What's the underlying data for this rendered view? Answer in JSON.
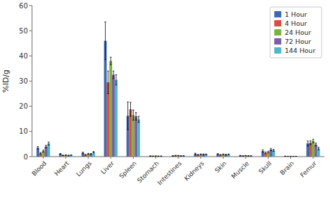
{
  "chart_data": {
    "type": "bar",
    "ylabel": "%ID/g",
    "categories": [
      "Blood",
      "Heart",
      "Lungs",
      "Liver",
      "Spleen",
      "Stomach",
      "Intestines",
      "Kidneys",
      "Skin",
      "Muscle",
      "Skull",
      "Brain",
      "Femur"
    ],
    "series": [
      {
        "name": "1 Hour",
        "color": "#3f68ae",
        "values": [
          3.5,
          1.1,
          1.5,
          46.0,
          16.2,
          0.25,
          0.3,
          1.1,
          1.0,
          0.4,
          2.2,
          0.15,
          5.2
        ],
        "errors": [
          0.5,
          0.15,
          0.3,
          7.5,
          5.5,
          0.08,
          0.08,
          0.25,
          0.2,
          0.1,
          0.5,
          0.05,
          1.0
        ]
      },
      {
        "name": "4 Hour",
        "color": "#d94f3d",
        "values": [
          1.3,
          0.5,
          0.7,
          29.5,
          18.8,
          0.2,
          0.4,
          0.7,
          0.7,
          0.3,
          1.5,
          0.1,
          5.5
        ],
        "errors": [
          0.3,
          0.08,
          0.15,
          4.5,
          2.8,
          0.06,
          0.1,
          0.15,
          0.12,
          0.07,
          0.35,
          0.04,
          0.8
        ]
      },
      {
        "name": "24 Hour",
        "color": "#7db040",
        "values": [
          2.2,
          0.6,
          1.1,
          38.0,
          16.5,
          0.25,
          0.4,
          0.9,
          0.9,
          0.4,
          1.8,
          0.1,
          6.2
        ],
        "errors": [
          0.4,
          0.1,
          0.2,
          1.5,
          2.0,
          0.07,
          0.1,
          0.15,
          0.15,
          0.08,
          0.35,
          0.04,
          0.7
        ]
      },
      {
        "name": "72 Hour",
        "color": "#7b5ea7",
        "values": [
          4.0,
          0.5,
          1.1,
          32.5,
          16.0,
          0.2,
          0.3,
          0.9,
          0.8,
          0.3,
          2.8,
          0.1,
          4.8
        ],
        "errors": [
          0.5,
          0.08,
          0.15,
          1.5,
          1.5,
          0.06,
          0.08,
          0.15,
          0.12,
          0.07,
          0.45,
          0.04,
          0.6
        ]
      },
      {
        "name": "144 Hour",
        "color": "#4ab8c9",
        "values": [
          5.2,
          0.6,
          1.8,
          30.5,
          14.8,
          0.2,
          0.3,
          0.9,
          0.9,
          0.3,
          2.5,
          0.1,
          3.2
        ],
        "errors": [
          0.6,
          0.1,
          0.25,
          2.0,
          1.2,
          0.06,
          0.08,
          0.15,
          0.15,
          0.07,
          0.38,
          0.04,
          0.5
        ]
      }
    ],
    "ylim": [
      0,
      60
    ],
    "yticks": [
      0,
      10,
      20,
      30,
      40,
      50,
      60
    ],
    "grid": false,
    "legend": "upper right"
  }
}
